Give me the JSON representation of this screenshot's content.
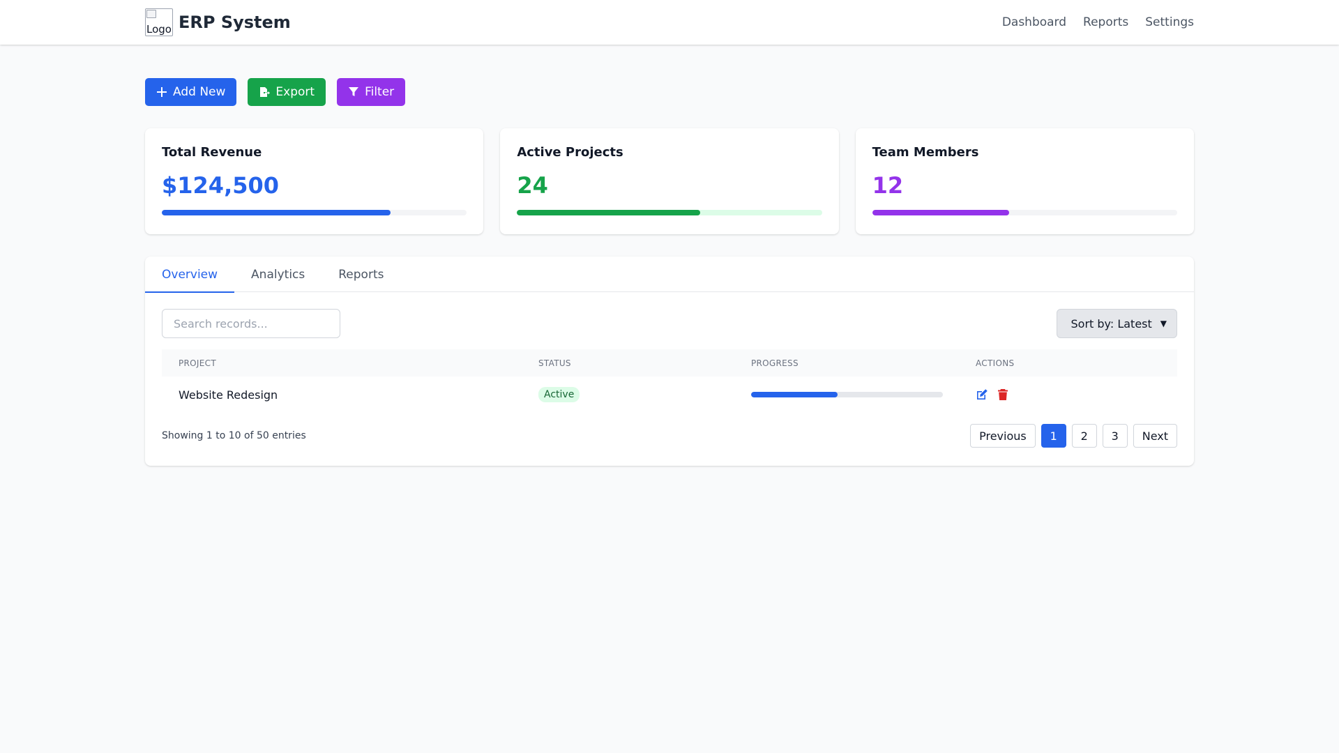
{
  "app": {
    "logo_alt": "Logo",
    "title": "ERP System"
  },
  "nav": {
    "items": [
      "Dashboard",
      "Reports",
      "Settings"
    ]
  },
  "toolbar": {
    "add_label": "Add New",
    "export_label": "Export",
    "filter_label": "Filter"
  },
  "cards": [
    {
      "title": "Total Revenue",
      "value": "$124,500",
      "progress_fraction": 0.75,
      "color": "#2563eb",
      "track": "#f3f4f6"
    },
    {
      "title": "Active Projects",
      "value": "24",
      "progress_fraction": 0.6,
      "color": "#16a34a",
      "track": "#dcfce7"
    },
    {
      "title": "Team Members",
      "value": "12",
      "progress_fraction": 0.45,
      "color": "#9333ea",
      "track": "#f3f4f6"
    }
  ],
  "tabs": [
    {
      "label": "Overview",
      "active": true
    },
    {
      "label": "Analytics",
      "active": false
    },
    {
      "label": "Reports",
      "active": false
    }
  ],
  "search": {
    "placeholder": "Search records...",
    "value": ""
  },
  "sort": {
    "selected": "Sort by: Latest"
  },
  "table": {
    "columns": [
      "PROJECT",
      "STATUS",
      "PROGRESS",
      "ACTIONS"
    ],
    "rows": [
      {
        "project": "Website Redesign",
        "status": "Active",
        "progress_fraction": 0.45
      }
    ]
  },
  "pagination": {
    "info": "Showing 1 to 10 of 50 entries",
    "previous": "Previous",
    "pages": [
      "1",
      "2",
      "3"
    ],
    "current": "1",
    "next": "Next"
  },
  "icons": {
    "add": "plus-icon",
    "export": "file-export-icon",
    "filter": "filter-icon",
    "edit": "edit-icon",
    "delete": "trash-icon"
  }
}
